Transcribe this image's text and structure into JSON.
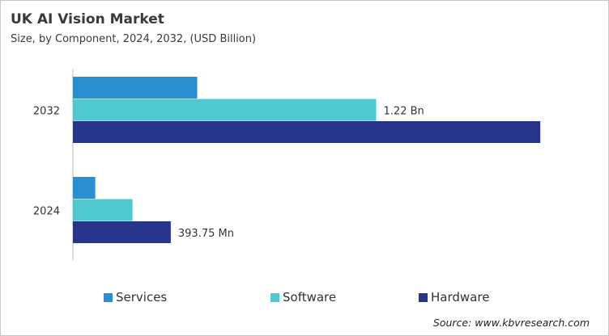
{
  "title": "UK AI Vision Market",
  "subtitle": "Size, by Component, 2024, 2032, (USD Billion)",
  "source": "Source: www.kbvresearch.com",
  "chart_data": {
    "type": "bar",
    "orientation": "horizontal",
    "title": "UK AI Vision Market",
    "subtitle": "Size, by Component, 2024, 2032, (USD Billion)",
    "categories": [
      "2032",
      "2024"
    ],
    "series": [
      {
        "name": "Services",
        "color": "#2a8fd0",
        "values": [
          0.5,
          0.09
        ]
      },
      {
        "name": "Software",
        "color": "#4fc8d0",
        "values": [
          1.22,
          0.24
        ]
      },
      {
        "name": "Hardware",
        "color": "#26348a",
        "values": [
          1.88,
          0.39375
        ]
      }
    ],
    "data_labels": [
      {
        "category": "2032",
        "series": "Software",
        "text": "1.22 Bn"
      },
      {
        "category": "2024",
        "series": "Hardware",
        "text": "393.75 Mn"
      }
    ],
    "xlim": [
      0,
      2.0
    ],
    "grid": false,
    "x_axis_visible": false,
    "legend_position": "bottom"
  }
}
